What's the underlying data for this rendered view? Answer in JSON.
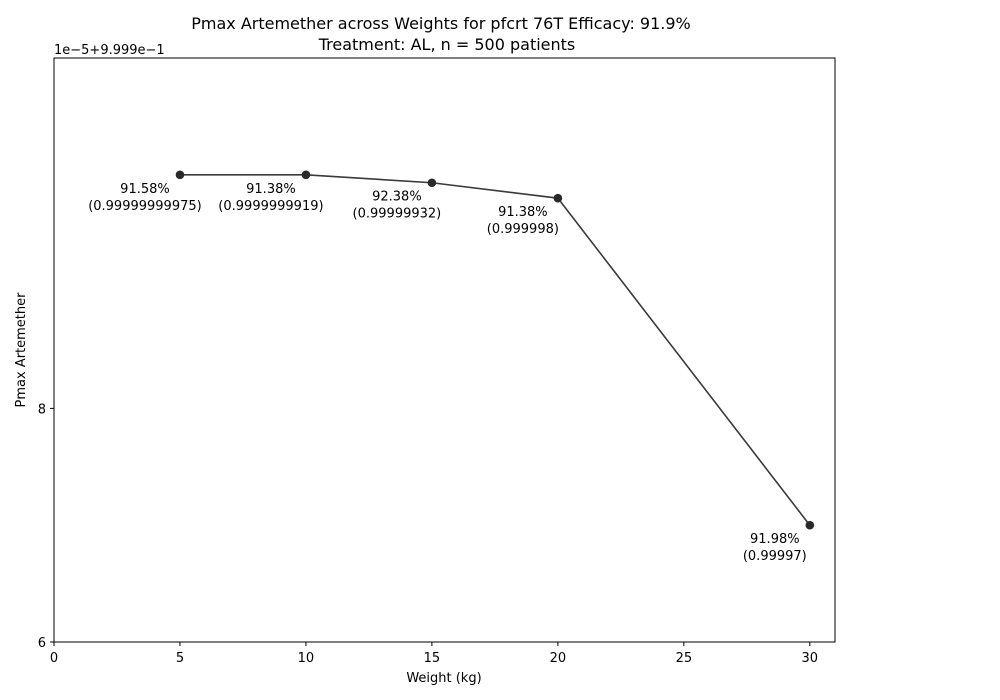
{
  "chart_data": {
    "type": "line",
    "title_line1": "Pmax Artemether across Weights for pfcrt 76T Efficacy: 91.9%",
    "title_line2": "Treatment: AL, n = 500 patients",
    "xlabel": "Weight (kg)",
    "ylabel": "Pmax Artemether",
    "y_offset_label": "1e−5+9.999e−1",
    "x_ticks": [
      "0",
      "5",
      "10",
      "15",
      "20",
      "25",
      "30"
    ],
    "y_ticks": [
      "6",
      "8"
    ],
    "xlim": [
      0,
      31
    ],
    "ylim": [
      6,
      11
    ],
    "grid": false,
    "line_color": "#3a3a3a",
    "marker_color": "#2a2a2a",
    "points": [
      {
        "x": 5,
        "y": 10.0,
        "label_pct": "91.58%",
        "label_val": "(0.99999999975)"
      },
      {
        "x": 10,
        "y": 10.0,
        "label_pct": "91.38%",
        "label_val": "(0.9999999919)"
      },
      {
        "x": 15,
        "y": 9.932,
        "label_pct": "92.38%",
        "label_val": "(0.99999932)"
      },
      {
        "x": 20,
        "y": 9.8,
        "label_pct": "91.38%",
        "label_val": "(0.999998)"
      },
      {
        "x": 30,
        "y": 7.0,
        "label_pct": "91.98%",
        "label_val": "(0.99997)"
      }
    ]
  }
}
